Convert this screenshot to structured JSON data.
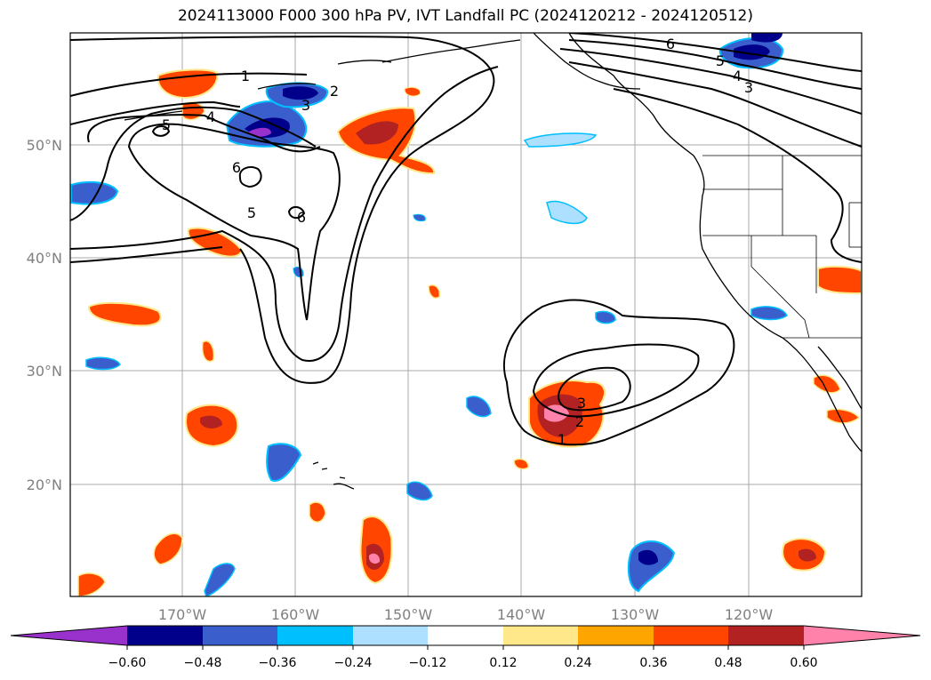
{
  "title": "2024113000 F000 300 hPa PV, IVT Landfall PC (2024120212 - 2024120512)",
  "latitude_labels": [
    "50°N",
    "40°N",
    "30°N",
    "20°N"
  ],
  "longitude_labels": [
    "170°W",
    "160°W",
    "150°W",
    "140°W",
    "130°W",
    "120°W"
  ],
  "colorbar": {
    "tick_labels": [
      "−0.60",
      "−0.48",
      "−0.36",
      "−0.24",
      "−0.12",
      "0.12",
      "0.24",
      "0.36",
      "0.48",
      "0.60"
    ],
    "colors": [
      "#9932CC",
      "#00008B",
      "#3A5FCD",
      "#00BFFF",
      "#ADDFFF",
      "#FFFFFF",
      "#FFE88A",
      "#FFA500",
      "#FF4500",
      "#B22222",
      "#FF82AB"
    ]
  },
  "contour_labels": [
    "1",
    "2",
    "3",
    "4",
    "5",
    "6"
  ],
  "colors": {
    "contour": "#000000",
    "coast": "#000000",
    "grid": "#aaaaaa"
  }
}
